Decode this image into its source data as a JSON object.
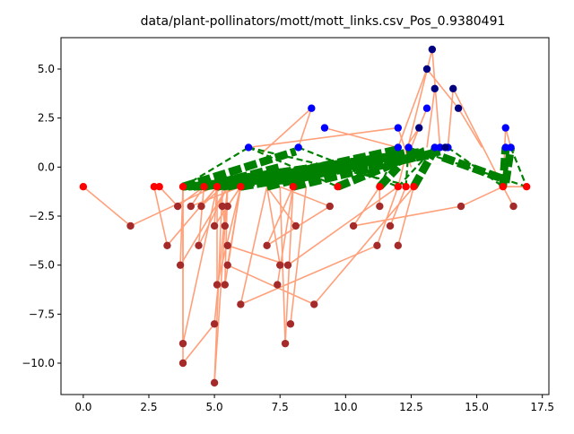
{
  "chart_data": {
    "type": "scatter",
    "title": "data/plant-pollinators/mott/mott_links.csv_Pos_0.9380491",
    "xlabel": "",
    "ylabel": "",
    "xlim": [
      -0.85,
      17.75
    ],
    "ylim": [
      -11.6,
      6.6
    ],
    "xticks": [
      0.0,
      2.5,
      5.0,
      7.5,
      10.0,
      12.5,
      15.0,
      17.5
    ],
    "yticks": [
      -10.0,
      -7.5,
      -5.0,
      -2.5,
      0.0,
      2.5,
      5.0
    ],
    "xtick_labels": [
      "0.0",
      "2.5",
      "5.0",
      "7.5",
      "10.0",
      "12.5",
      "15.0",
      "17.5"
    ],
    "ytick_labels": [
      "−10.0",
      "−7.5",
      "−5.0",
      "−2.5",
      "0.0",
      "2.5",
      "5.0"
    ],
    "grid": false,
    "colors": {
      "blue_nodes": "#0000ff",
      "navy_nodes": "#000080",
      "red_nodes": "#ff0000",
      "brown_nodes": "#a52a2a",
      "salmon_edges": "#ffa07a",
      "green_edges": "#008000"
    },
    "series": [
      {
        "marker": "dot",
        "color": "#0000ff",
        "points": [
          [
            6.3,
            1
          ],
          [
            8.2,
            1
          ],
          [
            12.0,
            1
          ],
          [
            12.4,
            1
          ],
          [
            13.4,
            1
          ],
          [
            13.6,
            1
          ],
          [
            13.9,
            1
          ],
          [
            16.1,
            1
          ],
          [
            16.3,
            1
          ],
          [
            16.1,
            2
          ],
          [
            12.0,
            2
          ],
          [
            9.2,
            2
          ],
          [
            13.1,
            3
          ],
          [
            8.7,
            3
          ]
        ]
      },
      {
        "marker": "dot",
        "color": "#000080",
        "points": [
          [
            13.3,
            6
          ],
          [
            13.1,
            5
          ],
          [
            14.1,
            4
          ],
          [
            13.4,
            4
          ],
          [
            14.3,
            3
          ],
          [
            12.8,
            2
          ],
          [
            13.8,
            1
          ]
        ]
      },
      {
        "marker": "dot",
        "color": "#ff0000",
        "points": [
          [
            0.0,
            -1
          ],
          [
            2.7,
            -1
          ],
          [
            2.9,
            -1
          ],
          [
            3.8,
            -1
          ],
          [
            4.6,
            -1
          ],
          [
            5.1,
            -1
          ],
          [
            6.0,
            -1
          ],
          [
            8.0,
            -1
          ],
          [
            9.7,
            -1
          ],
          [
            11.3,
            -1
          ],
          [
            12.0,
            -1
          ],
          [
            12.3,
            -1
          ],
          [
            12.6,
            -1
          ],
          [
            16.0,
            -1
          ],
          [
            16.9,
            -1
          ]
        ]
      },
      {
        "marker": "dot",
        "color": "#a52a2a",
        "points": [
          [
            1.8,
            -3
          ],
          [
            3.2,
            -4
          ],
          [
            3.6,
            -2
          ],
          [
            3.7,
            -5
          ],
          [
            3.8,
            -9
          ],
          [
            3.8,
            -10
          ],
          [
            4.1,
            -2
          ],
          [
            4.4,
            -4
          ],
          [
            4.5,
            -2
          ],
          [
            5.0,
            -3
          ],
          [
            5.0,
            -8
          ],
          [
            5.1,
            -6
          ],
          [
            5.0,
            -11
          ],
          [
            5.3,
            -2
          ],
          [
            5.4,
            -3
          ],
          [
            5.4,
            -6
          ],
          [
            5.5,
            -2
          ],
          [
            5.5,
            -4
          ],
          [
            5.5,
            -5
          ],
          [
            6.0,
            -7
          ],
          [
            7.0,
            -4
          ],
          [
            7.4,
            -6
          ],
          [
            7.5,
            -5
          ],
          [
            7.7,
            -9
          ],
          [
            7.9,
            -8
          ],
          [
            7.8,
            -5
          ],
          [
            8.1,
            -3
          ],
          [
            8.8,
            -7
          ],
          [
            9.4,
            -2
          ],
          [
            10.3,
            -3
          ],
          [
            11.2,
            -4
          ],
          [
            11.3,
            -2
          ],
          [
            11.7,
            -3
          ],
          [
            12.0,
            -4
          ],
          [
            14.4,
            -2
          ],
          [
            16.4,
            -2
          ]
        ]
      }
    ],
    "salmon_edges": [
      [
        [
          0.0,
          -1
        ],
        [
          1.8,
          -3
        ]
      ],
      [
        [
          1.8,
          -3
        ],
        [
          5.0,
          -1
        ]
      ],
      [
        [
          2.7,
          -1
        ],
        [
          3.2,
          -4
        ]
      ],
      [
        [
          3.2,
          -4
        ],
        [
          5.1,
          -1
        ]
      ],
      [
        [
          2.9,
          -1
        ],
        [
          3.6,
          -2
        ]
      ],
      [
        [
          3.6,
          -2
        ],
        [
          4.6,
          -1
        ]
      ],
      [
        [
          3.8,
          -1
        ],
        [
          3.7,
          -5
        ]
      ],
      [
        [
          3.7,
          -5
        ],
        [
          5.5,
          -1
        ]
      ],
      [
        [
          3.8,
          -1
        ],
        [
          3.8,
          -9
        ]
      ],
      [
        [
          3.8,
          -9
        ],
        [
          5.1,
          -1
        ]
      ],
      [
        [
          3.8,
          -1
        ],
        [
          3.8,
          -10
        ]
      ],
      [
        [
          3.8,
          -10
        ],
        [
          5.0,
          -8
        ]
      ],
      [
        [
          4.6,
          -1
        ],
        [
          4.1,
          -2
        ]
      ],
      [
        [
          4.1,
          -2
        ],
        [
          6.0,
          -1
        ]
      ],
      [
        [
          4.6,
          -1
        ],
        [
          4.4,
          -4
        ]
      ],
      [
        [
          4.4,
          -4
        ],
        [
          5.5,
          -1
        ]
      ],
      [
        [
          5.1,
          -1
        ],
        [
          4.5,
          -2
        ]
      ],
      [
        [
          4.5,
          -2
        ],
        [
          5.3,
          -1
        ]
      ],
      [
        [
          5.1,
          -1
        ],
        [
          5.0,
          -3
        ]
      ],
      [
        [
          5.0,
          -3
        ],
        [
          6.0,
          -1
        ]
      ],
      [
        [
          5.0,
          -8
        ],
        [
          5.5,
          -1
        ]
      ],
      [
        [
          5.1,
          -1
        ],
        [
          5.1,
          -6
        ]
      ],
      [
        [
          5.1,
          -6
        ],
        [
          6.0,
          -1
        ]
      ],
      [
        [
          5.3,
          -1
        ],
        [
          5.0,
          -11
        ]
      ],
      [
        [
          5.0,
          -11
        ],
        [
          5.5,
          -1
        ]
      ],
      [
        [
          5.3,
          -1
        ],
        [
          5.3,
          -2
        ]
      ],
      [
        [
          5.3,
          -2
        ],
        [
          5.4,
          -3
        ]
      ],
      [
        [
          5.4,
          -3
        ],
        [
          5.5,
          -1
        ]
      ],
      [
        [
          5.4,
          -6
        ],
        [
          6.0,
          -1
        ]
      ],
      [
        [
          5.4,
          -6
        ],
        [
          5.5,
          -1
        ]
      ],
      [
        [
          5.5,
          -2
        ],
        [
          6.0,
          -1
        ]
      ],
      [
        [
          5.5,
          -4
        ],
        [
          7.8,
          -5
        ]
      ],
      [
        [
          5.5,
          -5
        ],
        [
          6.0,
          -1
        ]
      ],
      [
        [
          5.5,
          -5
        ],
        [
          8.8,
          -7
        ]
      ],
      [
        [
          6.0,
          -7
        ],
        [
          7.0,
          -1
        ]
      ],
      [
        [
          6.0,
          -7
        ],
        [
          11.2,
          -4
        ]
      ],
      [
        [
          7.0,
          -4
        ],
        [
          8.0,
          -1
        ]
      ],
      [
        [
          7.0,
          -4
        ],
        [
          9.4,
          -2
        ]
      ],
      [
        [
          7.4,
          -6
        ],
        [
          8.0,
          -1
        ]
      ],
      [
        [
          7.5,
          -5
        ],
        [
          7.0,
          -1
        ]
      ],
      [
        [
          7.7,
          -9
        ],
        [
          7.5,
          -1
        ]
      ],
      [
        [
          7.7,
          -9
        ],
        [
          8.0,
          -1
        ]
      ],
      [
        [
          7.9,
          -8
        ],
        [
          8.5,
          -1
        ]
      ],
      [
        [
          7.8,
          -5
        ],
        [
          12.0,
          -1
        ]
      ],
      [
        [
          8.1,
          -3
        ],
        [
          7.0,
          -1
        ]
      ],
      [
        [
          8.8,
          -7
        ],
        [
          12.6,
          -1
        ]
      ],
      [
        [
          9.4,
          -2
        ],
        [
          7.5,
          -1
        ]
      ],
      [
        [
          10.3,
          -3
        ],
        [
          11.3,
          -1
        ]
      ],
      [
        [
          10.3,
          -3
        ],
        [
          14.4,
          -2
        ]
      ],
      [
        [
          11.2,
          -4
        ],
        [
          12.0,
          -1
        ]
      ],
      [
        [
          11.3,
          -2
        ],
        [
          11.3,
          -1
        ]
      ],
      [
        [
          11.7,
          -3
        ],
        [
          12.3,
          -1
        ]
      ],
      [
        [
          12.0,
          -4
        ],
        [
          12.6,
          -1
        ]
      ],
      [
        [
          14.4,
          -2
        ],
        [
          16.0,
          -1
        ]
      ],
      [
        [
          16.4,
          -2
        ],
        [
          16.0,
          -1
        ]
      ],
      [
        [
          16.0,
          -1
        ],
        [
          16.9,
          -1
        ]
      ],
      [
        [
          12.0,
          -1
        ],
        [
          13.3,
          6
        ]
      ],
      [
        [
          13.3,
          6
        ],
        [
          13.6,
          1
        ]
      ],
      [
        [
          13.1,
          5
        ],
        [
          12.0,
          1
        ]
      ],
      [
        [
          13.1,
          5
        ],
        [
          14.3,
          3
        ]
      ],
      [
        [
          14.1,
          4
        ],
        [
          13.9,
          1
        ]
      ],
      [
        [
          14.1,
          4
        ],
        [
          16.0,
          -1
        ]
      ],
      [
        [
          13.4,
          4
        ],
        [
          13.1,
          1
        ]
      ],
      [
        [
          14.3,
          3
        ],
        [
          15.2,
          1
        ]
      ],
      [
        [
          12.8,
          2
        ],
        [
          12.3,
          1
        ]
      ],
      [
        [
          16.1,
          2
        ],
        [
          16.3,
          1
        ]
      ],
      [
        [
          16.1,
          2
        ],
        [
          16.0,
          -1
        ]
      ],
      [
        [
          9.2,
          2
        ],
        [
          12.0,
          1
        ]
      ],
      [
        [
          8.7,
          3
        ],
        [
          8.2,
          1
        ]
      ],
      [
        [
          8.7,
          3
        ],
        [
          6.8,
          0.7
        ]
      ],
      [
        [
          6.3,
          1
        ],
        [
          12.0,
          2
        ]
      ],
      [
        [
          12.0,
          2
        ],
        [
          12.5,
          0
        ]
      ],
      [
        [
          13.1,
          3
        ],
        [
          12.5,
          1
        ]
      ]
    ],
    "green_dashed_edges": [
      [
        [
          3.8,
          -1
        ],
        [
          6.3,
          1
        ]
      ],
      [
        [
          6.3,
          1
        ],
        [
          12.6,
          -1
        ]
      ],
      [
        [
          6.3,
          1
        ],
        [
          9.7,
          -1
        ]
      ],
      [
        [
          8.2,
          1
        ],
        [
          12.0,
          -1
        ]
      ],
      [
        [
          12.4,
          1
        ],
        [
          16.9,
          -1
        ]
      ],
      [
        [
          12.0,
          -1
        ],
        [
          13.4,
          1
        ]
      ],
      [
        [
          13.9,
          1
        ],
        [
          16.0,
          -1
        ]
      ],
      [
        [
          16.3,
          1
        ],
        [
          16.9,
          -1
        ]
      ],
      [
        [
          12.3,
          -1
        ],
        [
          12.4,
          1
        ]
      ],
      [
        [
          11.3,
          -1
        ],
        [
          12.0,
          1
        ]
      ]
    ],
    "green_thick_edges": [
      [
        [
          3.8,
          -1
        ],
        [
          8.1,
          0.8
        ]
      ],
      [
        [
          3.8,
          -1
        ],
        [
          11.5,
          0.5
        ]
      ],
      [
        [
          3.8,
          -1
        ],
        [
          13.0,
          0.8
        ]
      ],
      [
        [
          4.6,
          -1
        ],
        [
          7.5,
          0
        ]
      ],
      [
        [
          5.1,
          -1
        ],
        [
          9.6,
          0
        ]
      ],
      [
        [
          5.3,
          -1
        ],
        [
          10.5,
          0.3
        ]
      ],
      [
        [
          5.5,
          -1
        ],
        [
          12.0,
          0.9
        ]
      ],
      [
        [
          6.0,
          -1
        ],
        [
          11.0,
          0.2
        ]
      ],
      [
        [
          6.0,
          -1
        ],
        [
          13.2,
          0.6
        ]
      ],
      [
        [
          7.0,
          -1
        ],
        [
          12.5,
          0.8
        ]
      ],
      [
        [
          8.0,
          -1
        ],
        [
          11.8,
          0.6
        ]
      ],
      [
        [
          8.0,
          -1
        ],
        [
          13.6,
          0.8
        ]
      ],
      [
        [
          9.7,
          -1
        ],
        [
          13.0,
          0.8
        ]
      ],
      [
        [
          11.3,
          -1
        ],
        [
          12.0,
          0.0
        ]
      ],
      [
        [
          12.6,
          -1
        ],
        [
          13.4,
          0.9
        ]
      ],
      [
        [
          13.7,
          0.5
        ],
        [
          16.0,
          -0.6
        ]
      ],
      [
        [
          16.0,
          -1
        ],
        [
          16.1,
          1
        ]
      ],
      [
        [
          16.1,
          -0.8
        ],
        [
          16.3,
          1
        ]
      ],
      [
        [
          4.0,
          -1
        ],
        [
          9.6,
          -0.2
        ]
      ],
      [
        [
          4.2,
          -1
        ],
        [
          8.4,
          -0.6
        ]
      ],
      [
        [
          4.6,
          -1
        ],
        [
          11.6,
          0.5
        ]
      ]
    ]
  }
}
